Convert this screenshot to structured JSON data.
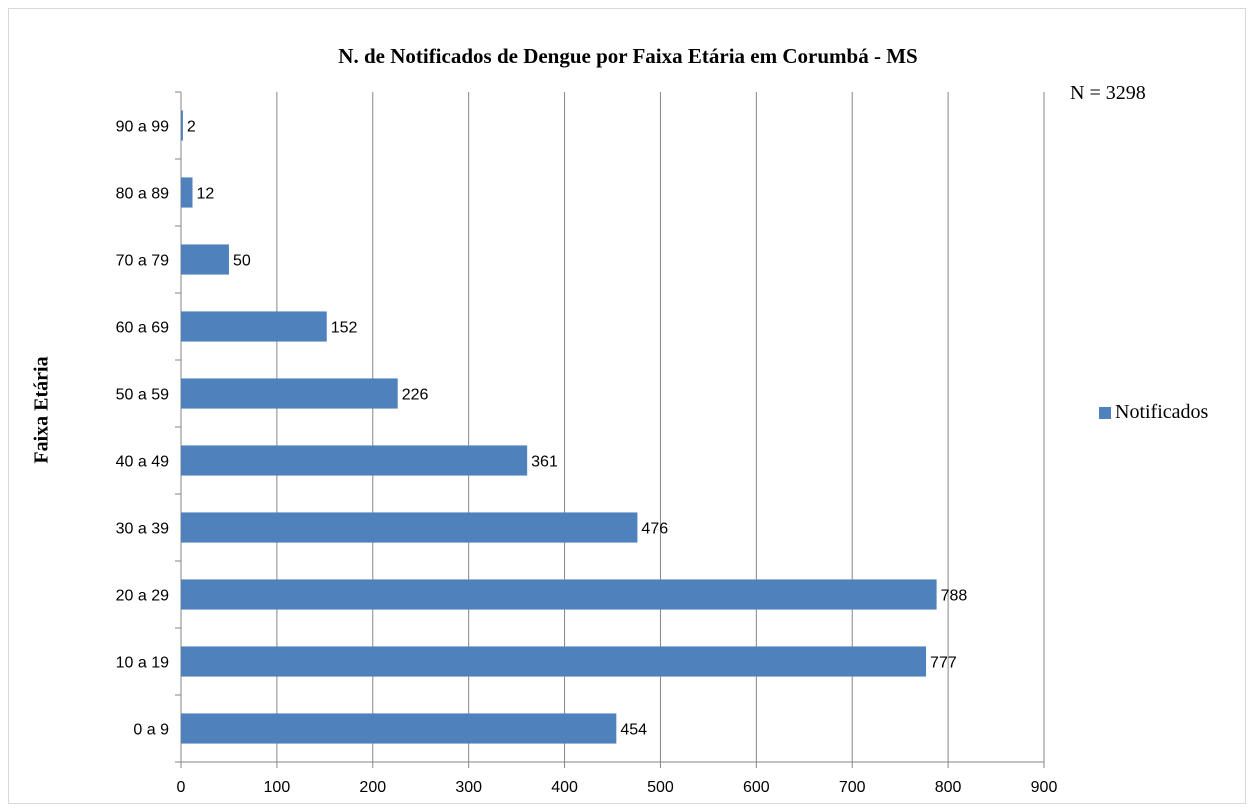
{
  "chart_data": {
    "type": "bar",
    "orientation": "horizontal",
    "title": "N. de Notificados de Dengue por Faixa Etária em Corumbá - MS",
    "annotation": "N = 3298",
    "ylabel": "Faixa Etária",
    "xlabel": "",
    "categories": [
      "0 a 9",
      "10 a 19",
      "20 a 29",
      "30 a 39",
      "40 a 49",
      "50 a 59",
      "60 a 69",
      "70 a 79",
      "80 a 89",
      "90 a 99"
    ],
    "series": [
      {
        "name": "Notificados",
        "values": [
          454,
          777,
          788,
          476,
          361,
          226,
          152,
          50,
          12,
          2
        ],
        "color": "#4f81bd"
      }
    ],
    "xlim": [
      0,
      900
    ],
    "xticks": [
      0,
      100,
      200,
      300,
      400,
      500,
      600,
      700,
      800,
      900
    ],
    "grid": "vertical",
    "legend_position": "right",
    "data_labels": true
  }
}
